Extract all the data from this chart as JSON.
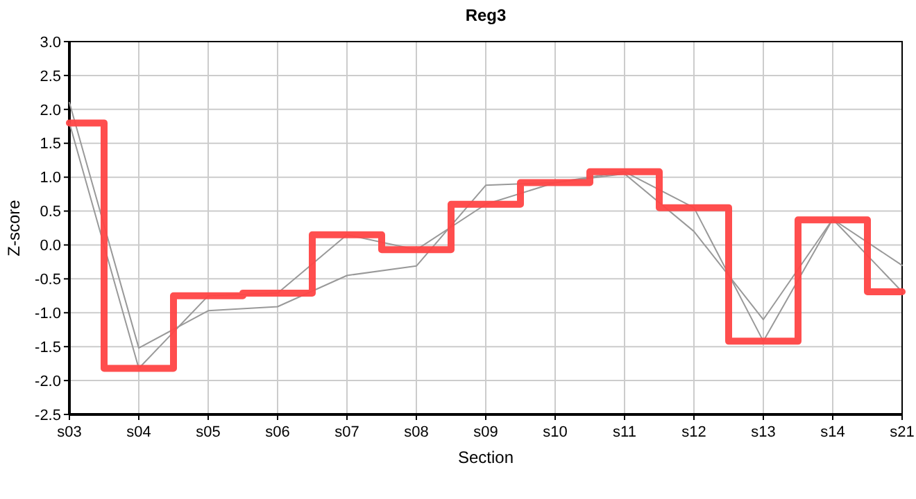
{
  "chart_data": {
    "type": "line",
    "title": "Reg3",
    "xlabel": "Section",
    "ylabel": "Z-score",
    "categories": [
      "s03",
      "s04",
      "s05",
      "s06",
      "s07",
      "s08",
      "s09",
      "s10",
      "s11",
      "s12",
      "s13",
      "s14",
      "s21"
    ],
    "series": [
      {
        "color": "#999999",
        "values": [
          2.1,
          -1.52,
          -0.97,
          -0.91,
          -0.45,
          -0.31,
          0.88,
          0.92,
          1.05,
          0.2,
          -1.1,
          0.38,
          -0.3
        ]
      },
      {
        "color": "#999999",
        "values": [
          1.8,
          -1.82,
          -0.75,
          -0.71,
          0.15,
          -0.07,
          0.6,
          0.92,
          1.08,
          0.55,
          -1.42,
          0.38,
          -0.69
        ]
      },
      {
        "type": "step",
        "color": "#ff4444",
        "values": [
          1.8,
          -1.82,
          -0.75,
          -0.71,
          0.15,
          -0.07,
          0.6,
          0.92,
          1.08,
          0.55,
          -1.42,
          0.37,
          -0.69
        ]
      }
    ],
    "ylim": [
      -2.5,
      3.0
    ],
    "yticks": [
      {
        "value": -2.5,
        "label": "-2.5"
      },
      {
        "value": -2,
        "label": "-2.0"
      },
      {
        "value": -1.5,
        "label": "-1.5"
      },
      {
        "value": -1,
        "label": "-1.0"
      },
      {
        "value": -0.5,
        "label": "-0.5"
      },
      {
        "value": 0,
        "label": "0.0"
      },
      {
        "value": 0.5,
        "label": "0.5"
      },
      {
        "value": 1,
        "label": "1.0"
      },
      {
        "value": 1.5,
        "label": "1.5"
      },
      {
        "value": 2,
        "label": "2.0"
      },
      {
        "value": 2.5,
        "label": "2.5"
      },
      {
        "value": 3,
        "label": "3.0"
      }
    ],
    "grid": true,
    "marker": "none"
  }
}
